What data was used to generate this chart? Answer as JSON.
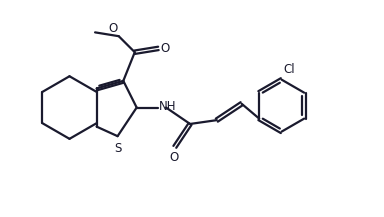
{
  "bg_color": "#ffffff",
  "line_color": "#1a1a2e",
  "line_width": 1.6,
  "fig_width": 3.84,
  "fig_height": 2.17,
  "dpi": 100,
  "xlim": [
    0,
    10
  ],
  "ylim": [
    0,
    5.65
  ]
}
